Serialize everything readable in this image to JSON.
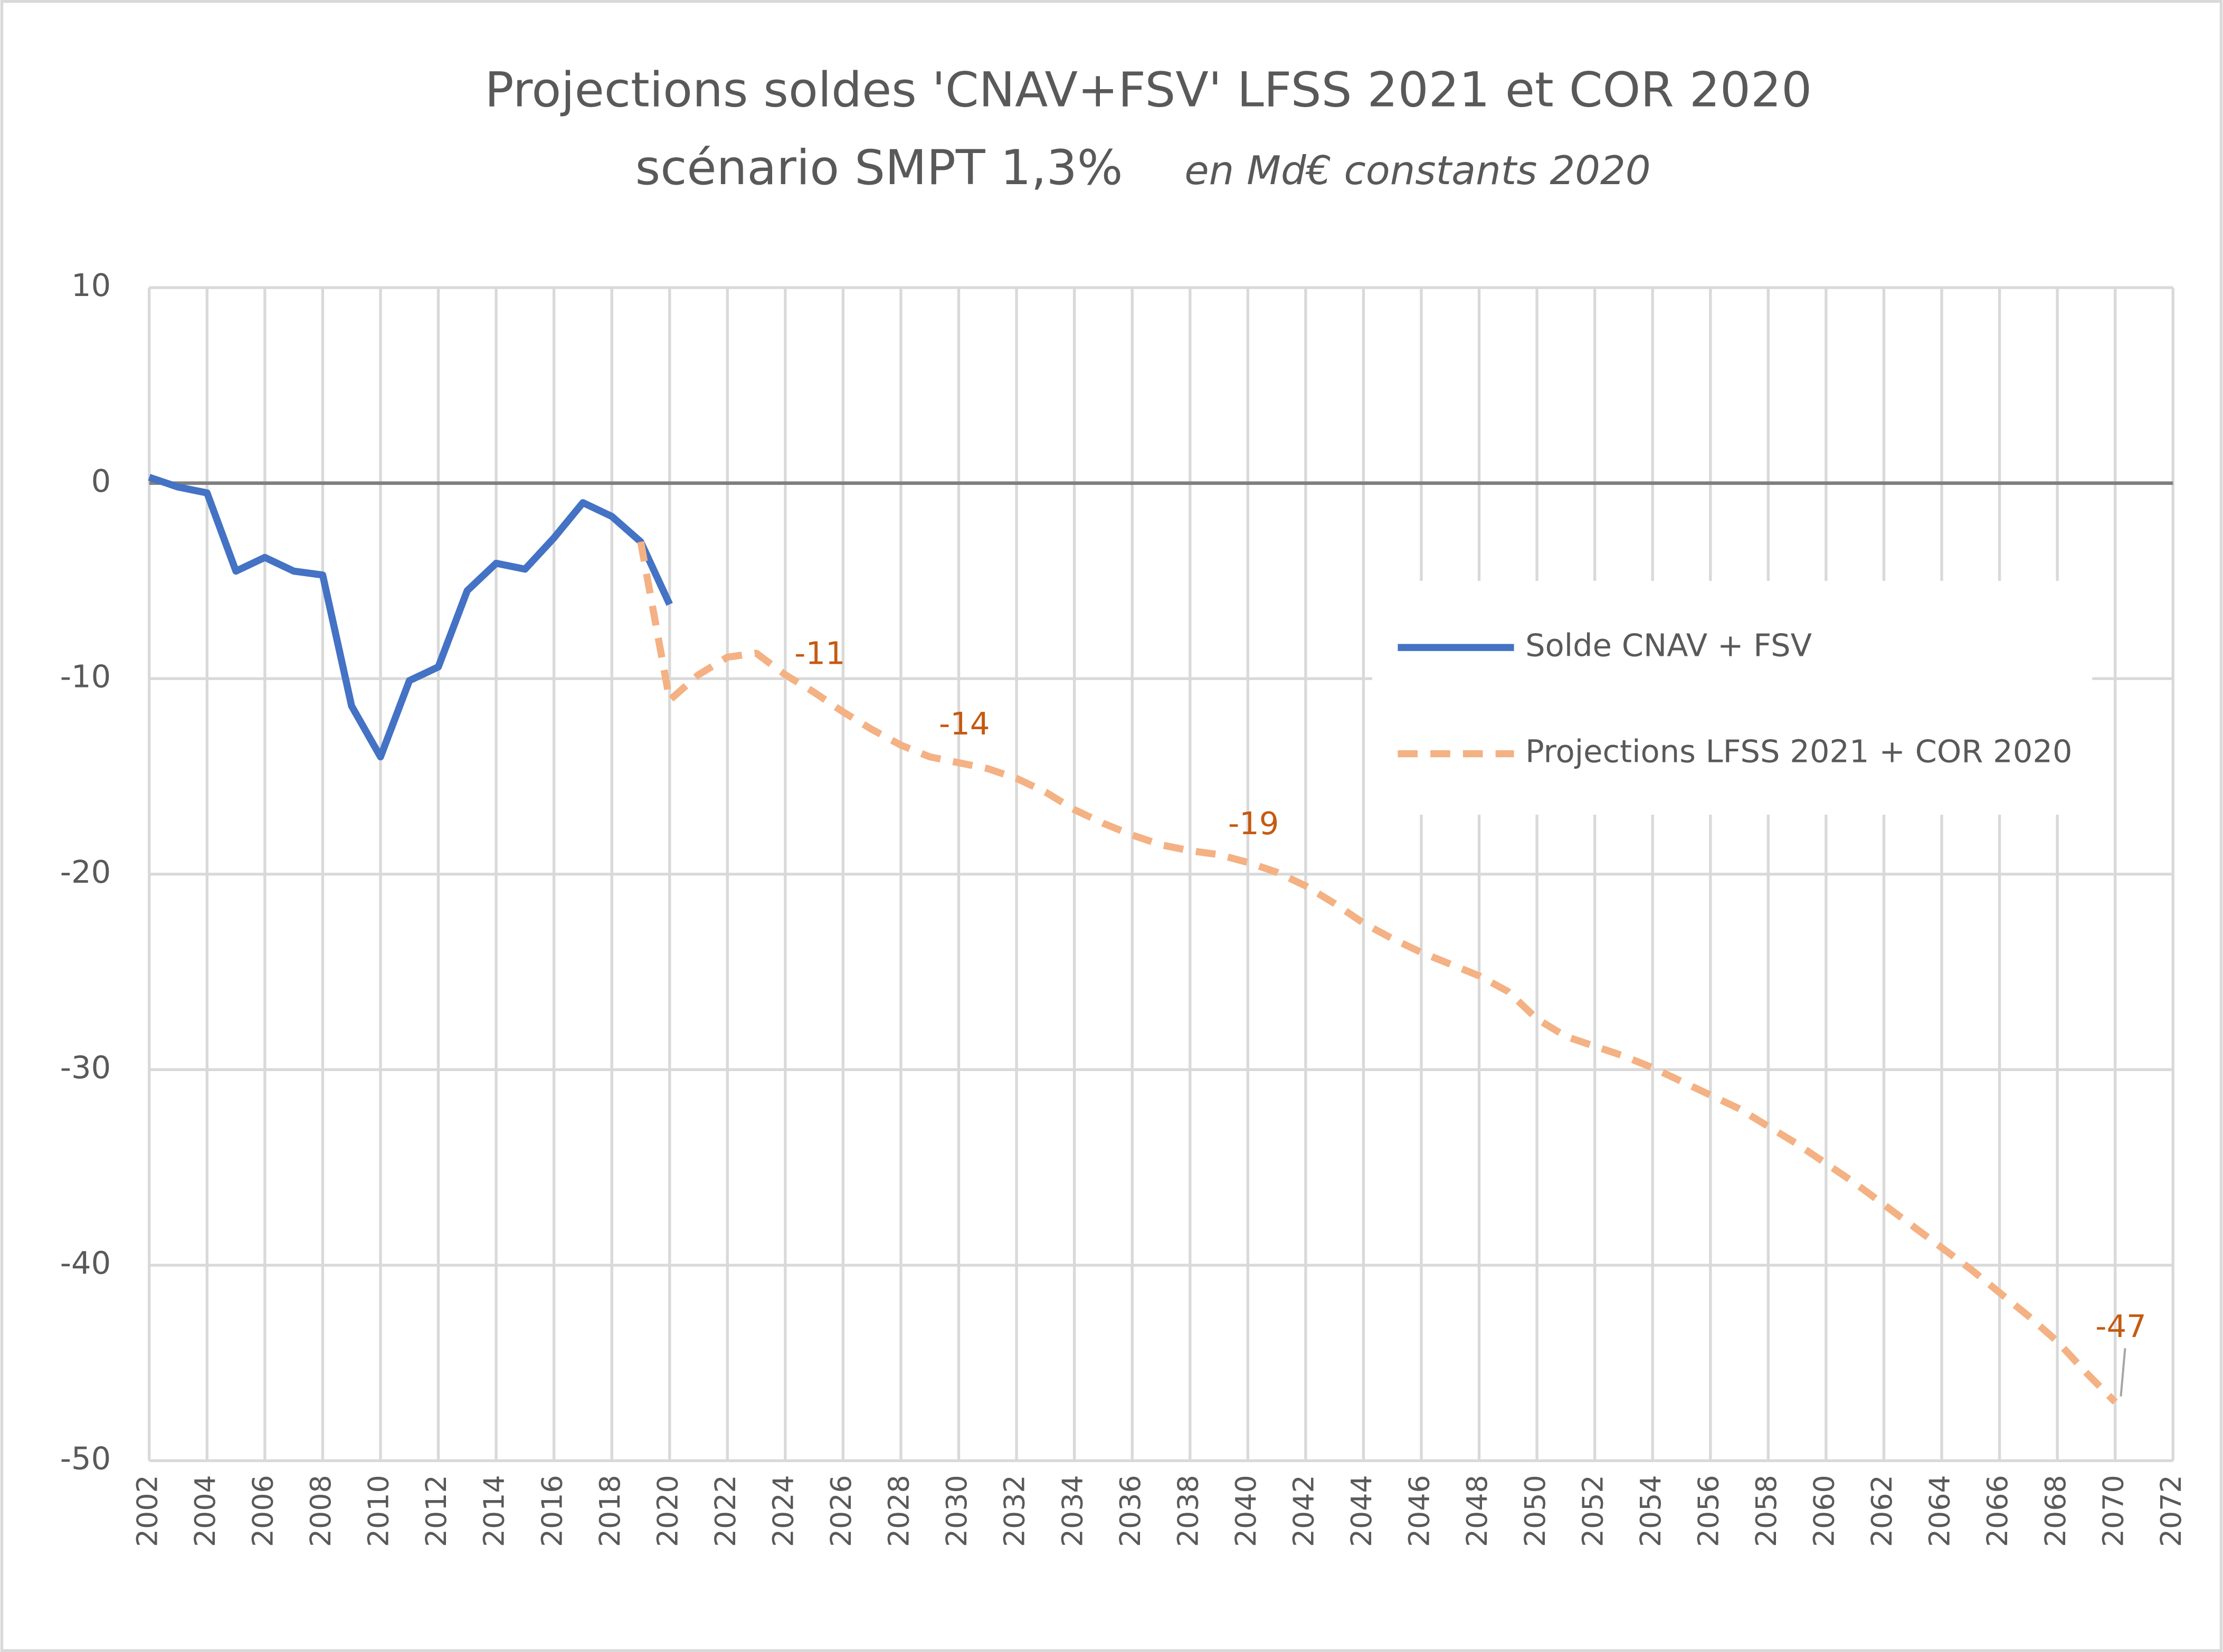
{
  "chart_data": {
    "type": "line",
    "title": "Projections  soldes 'CNAV+FSV'  LFSS 2021 et COR 2020",
    "subtitle": "scénario SMPT 1,3%",
    "unit_note": "en Md€ constants 2020",
    "x": [
      2002,
      2003,
      2004,
      2005,
      2006,
      2007,
      2008,
      2009,
      2010,
      2011,
      2012,
      2013,
      2014,
      2015,
      2016,
      2017,
      2018,
      2019,
      2020,
      2021,
      2022,
      2023,
      2024,
      2025,
      2026,
      2027,
      2028,
      2029,
      2030,
      2031,
      2032,
      2033,
      2034,
      2035,
      2036,
      2037,
      2038,
      2039,
      2040,
      2041,
      2042,
      2043,
      2044,
      2045,
      2046,
      2047,
      2048,
      2049,
      2050,
      2051,
      2052,
      2053,
      2054,
      2055,
      2056,
      2057,
      2058,
      2059,
      2060,
      2061,
      2062,
      2063,
      2064,
      2065,
      2066,
      2067,
      2068,
      2069,
      2070
    ],
    "series": [
      {
        "name": "Solde CNAV + FSV",
        "color": "#4472c4",
        "dash": false,
        "values": [
          0.3,
          -0.2,
          -0.5,
          -4.5,
          -3.8,
          -4.5,
          -4.7,
          -11.4,
          -14.0,
          -10.1,
          -9.4,
          -5.5,
          -4.1,
          -4.4,
          -2.8,
          -1.0,
          -1.7,
          -3.0,
          -6.2,
          null,
          null,
          null,
          null,
          null,
          null,
          null,
          null,
          null,
          null,
          null,
          null,
          null,
          null,
          null,
          null,
          null,
          null,
          null,
          null,
          null,
          null,
          null,
          null,
          null,
          null,
          null,
          null,
          null,
          null,
          null,
          null,
          null,
          null,
          null,
          null,
          null,
          null,
          null,
          null,
          null,
          null,
          null,
          null,
          null,
          null,
          null,
          null,
          null,
          null
        ]
      },
      {
        "name": "Projections LFSS 2021 + COR 2020",
        "color": "#f4b183",
        "dash": true,
        "label_color": "#c55a11",
        "values": [
          null,
          null,
          null,
          null,
          null,
          null,
          null,
          null,
          null,
          null,
          null,
          null,
          null,
          null,
          null,
          null,
          null,
          -3.0,
          -11.1,
          -9.8,
          -8.9,
          -8.7,
          -9.8,
          -10.7,
          -11.7,
          -12.6,
          -13.4,
          -14.0,
          -14.3,
          -14.6,
          -15.1,
          -15.8,
          -16.7,
          -17.4,
          -18.0,
          -18.5,
          -18.8,
          -19.0,
          -19.4,
          -19.9,
          -20.6,
          -21.5,
          -22.5,
          -23.3,
          -24.0,
          -24.6,
          -25.2,
          -26.0,
          -27.4,
          -28.3,
          -28.8,
          -29.3,
          -29.9,
          -30.6,
          -31.3,
          -32.0,
          -32.9,
          -33.8,
          -34.8,
          -35.8,
          -36.9,
          -38.0,
          -39.1,
          -40.2,
          -41.4,
          -42.6,
          -43.9,
          -45.5,
          -47.0
        ],
        "value_labels": [
          null,
          null,
          null,
          null,
          null,
          null,
          null,
          null,
          null,
          null,
          null,
          null,
          null,
          null,
          null,
          null,
          null,
          null,
          null,
          null,
          null,
          null,
          null,
          "-11",
          null,
          null,
          null,
          null,
          "-14",
          null,
          null,
          null,
          null,
          null,
          null,
          null,
          null,
          null,
          "-19",
          null,
          null,
          null,
          null,
          null,
          null,
          null,
          null,
          null,
          null,
          null,
          null,
          null,
          null,
          null,
          null,
          null,
          null,
          null,
          null,
          null,
          null,
          null,
          null,
          null,
          null,
          null,
          null,
          null,
          "-47"
        ]
      }
    ],
    "xlim": [
      2002,
      2072
    ],
    "xticks": [
      2002,
      2004,
      2006,
      2008,
      2010,
      2012,
      2014,
      2016,
      2018,
      2020,
      2022,
      2024,
      2026,
      2028,
      2030,
      2032,
      2034,
      2036,
      2038,
      2040,
      2042,
      2044,
      2046,
      2048,
      2050,
      2052,
      2054,
      2056,
      2058,
      2060,
      2062,
      2064,
      2066,
      2068,
      2070,
      2072
    ],
    "ylim": [
      -50,
      10
    ],
    "yticks": [
      -50,
      -40,
      -30,
      -20,
      -10,
      0,
      10
    ],
    "grid": true,
    "legend": "right"
  }
}
